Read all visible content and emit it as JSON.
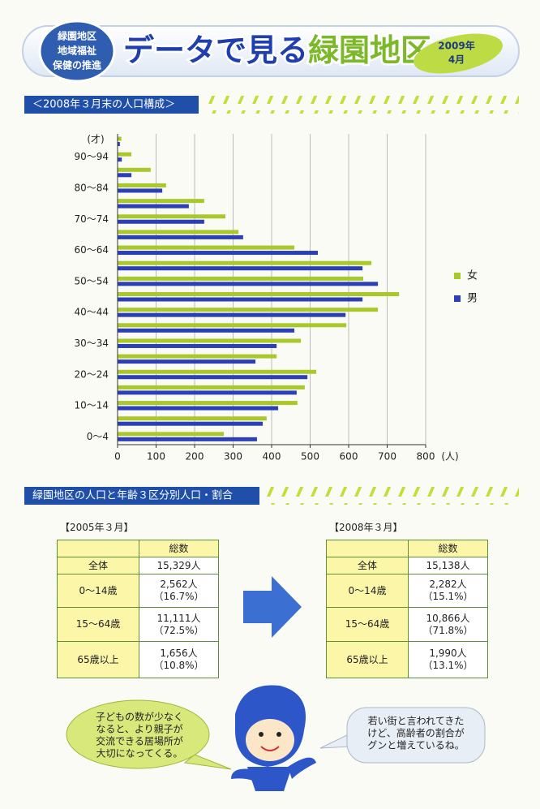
{
  "header": {
    "badge": [
      "緑園地区",
      "地域福祉",
      "保健の推進"
    ],
    "title_prefix": "データで見る",
    "title_place": "緑園地区",
    "date": [
      "2009年",
      "4月"
    ]
  },
  "section1": "＜2008年３月末の人口構成＞",
  "chart_data": {
    "type": "bar",
    "orientation": "horizontal",
    "y_unit": "(才)",
    "x_unit": "(人)",
    "categories": [
      "0～4",
      null,
      "10～14",
      null,
      "20～24",
      null,
      "30～34",
      null,
      "40～44",
      null,
      "50～54",
      null,
      "60～64",
      null,
      "70～74",
      null,
      "80～84",
      null,
      "90～94",
      null
    ],
    "series": [
      {
        "name": "女",
        "color": "#a9c92b",
        "values": [
          276,
          387,
          467,
          486,
          516,
          413,
          476,
          594,
          676,
          731,
          638,
          659,
          459,
          314,
          280,
          225,
          126,
          86,
          36,
          10
        ]
      },
      {
        "name": "男",
        "color": "#2b3fb6",
        "values": [
          362,
          377,
          417,
          465,
          493,
          358,
          413,
          459,
          592,
          636,
          676,
          636,
          520,
          326,
          225,
          185,
          116,
          36,
          11,
          6
        ]
      }
    ],
    "xlim": [
      0,
      800
    ],
    "xticks": [
      0,
      100,
      200,
      300,
      400,
      500,
      600,
      700,
      800
    ],
    "grid": true,
    "legend": "right"
  },
  "section2": "緑園地区の人口と年齢３区分別人口・割合",
  "tables": [
    {
      "caption": "【2005年３月】",
      "header": "総数",
      "rows": [
        {
          "label": "全体",
          "count": "15,329人"
        },
        {
          "label": "0～14歳",
          "count": "2,562人",
          "share": "（16.7%）"
        },
        {
          "label": "15～64歳",
          "count": "11,111人",
          "share": "（72.5%）"
        },
        {
          "label": "65歳以上",
          "count": "1,656人",
          "share": "（10.8%）"
        }
      ]
    },
    {
      "caption": "【2008年３月】",
      "header": "総数",
      "rows": [
        {
          "label": "全体",
          "count": "15,138人"
        },
        {
          "label": "0～14歳",
          "count": "2,282人",
          "share": "（15.1%）"
        },
        {
          "label": "15～64歳",
          "count": "10,866人",
          "share": "（71.8%）"
        },
        {
          "label": "65歳以上",
          "count": "1,990人",
          "share": "（13.1%）"
        }
      ]
    }
  ],
  "bubbles": [
    [
      "子どもの数が少なく",
      "なると、より親子が",
      "交流できる居場所が",
      "大切になってくる。"
    ],
    [
      "若い街と言われてきた",
      "けど、高齢者の割合が",
      "グンと増えているね。"
    ]
  ]
}
